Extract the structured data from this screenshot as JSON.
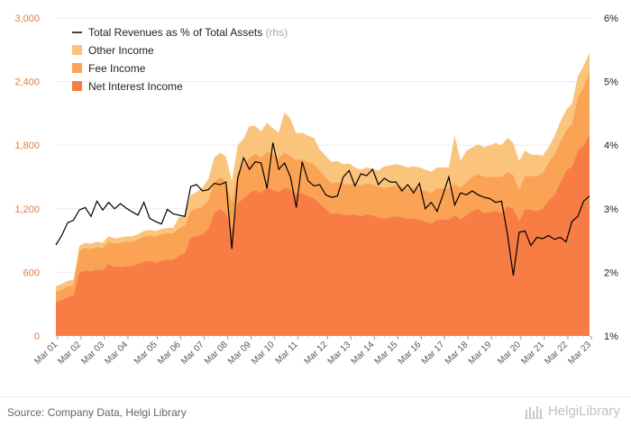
{
  "chart_data": {
    "type": "area",
    "title": "",
    "y_left": {
      "ticks": [
        "0",
        "600",
        "1,200",
        "1,800",
        "2,400",
        "3,000"
      ],
      "range": [
        0,
        3000
      ]
    },
    "y_right": {
      "ticks": [
        "1%",
        "2%",
        "3%",
        "4%",
        "5%",
        "6%"
      ],
      "range": [
        1,
        6
      ]
    },
    "x_tick_labels": [
      "Mar 01",
      "Mar 02",
      "Mar 03",
      "Mar 04",
      "Mar 05",
      "Mar 06",
      "Mar 07",
      "Mar 08",
      "Mar 09",
      "Mar 10",
      "Mar 11",
      "Mar 12",
      "Mar 13",
      "Mar 14",
      "Mar 15",
      "Mar 16",
      "Mar 17",
      "Mar 18",
      "Mar 19",
      "Mar 20",
      "Mar 21",
      "Mar 22",
      "Mar 23"
    ],
    "legend": [
      {
        "name": "Total Revenues as % of Total Assets",
        "suffix": "(rhs)",
        "type": "line",
        "color": "#000000"
      },
      {
        "name": "Other Income",
        "type": "area",
        "color": "#fbc47d"
      },
      {
        "name": "Fee Income",
        "type": "area",
        "color": "#fba354"
      },
      {
        "name": "Net Interest Income",
        "type": "area",
        "color": "#f77d45"
      }
    ],
    "series": [
      {
        "name": "Net Interest Income",
        "values": [
          320,
          340,
          370,
          380,
          600,
          620,
          610,
          630,
          620,
          680,
          650,
          650,
          660,
          660,
          680,
          700,
          710,
          690,
          710,
          720,
          720,
          760,
          780,
          930,
          940,
          960,
          1010,
          1160,
          1200,
          1160,
          1000,
          1250,
          1300,
          1350,
          1380,
          1350,
          1400,
          1380,
          1360,
          1400,
          1380,
          1340,
          1350,
          1320,
          1300,
          1250,
          1200,
          1150,
          1160,
          1150,
          1140,
          1150,
          1130,
          1150,
          1140,
          1120,
          1110,
          1120,
          1130,
          1120,
          1100,
          1110,
          1100,
          1080,
          1060,
          1100,
          1100,
          1100,
          1140,
          1100,
          1140,
          1180,
          1200,
          1160,
          1170,
          1180,
          1160,
          1220,
          1200,
          1080,
          1200,
          1190,
          1180,
          1200,
          1280,
          1330,
          1450,
          1560,
          1600,
          1750,
          1800,
          1900
        ]
      },
      {
        "name": "Fee Income",
        "values": [
          100,
          100,
          100,
          100,
          200,
          210,
          210,
          210,
          210,
          210,
          220,
          230,
          230,
          230,
          230,
          240,
          240,
          250,
          250,
          250,
          250,
          260,
          260,
          250,
          260,
          260,
          270,
          290,
          300,
          300,
          260,
          300,
          320,
          330,
          340,
          330,
          340,
          330,
          320,
          330,
          320,
          320,
          320,
          320,
          320,
          310,
          300,
          290,
          290,
          290,
          290,
          290,
          290,
          290,
          290,
          290,
          290,
          290,
          290,
          290,
          290,
          290,
          290,
          290,
          290,
          290,
          290,
          290,
          300,
          300,
          310,
          320,
          330,
          340,
          330,
          320,
          340,
          330,
          320,
          300,
          310,
          320,
          330,
          340,
          360,
          380,
          380,
          380,
          400,
          500,
          550,
          600
        ]
      },
      {
        "name": "Other Income",
        "values": [
          50,
          50,
          50,
          50,
          50,
          50,
          50,
          50,
          50,
          50,
          50,
          50,
          50,
          50,
          50,
          50,
          50,
          50,
          50,
          50,
          50,
          100,
          100,
          150,
          160,
          180,
          200,
          230,
          230,
          230,
          200,
          250,
          240,
          300,
          260,
          250,
          270,
          250,
          240,
          380,
          350,
          250,
          250,
          250,
          250,
          200,
          200,
          200,
          200,
          180,
          200,
          150,
          150,
          150,
          150,
          150,
          200,
          200,
          200,
          200,
          200,
          200,
          200,
          200,
          200,
          200,
          200,
          200,
          450,
          250,
          300,
          280,
          280,
          280,
          300,
          320,
          300,
          320,
          300,
          270,
          240,
          200,
          200,
          160,
          140,
          170,
          190,
          190,
          190,
          200,
          200,
          170
        ]
      },
      {
        "name": "Total Revenues as % of Total Assets",
        "axis": "rhs",
        "values": [
          2.43,
          2.58,
          2.78,
          2.82,
          2.98,
          3.02,
          2.88,
          3.12,
          2.98,
          3.1,
          3.0,
          3.08,
          3.01,
          2.95,
          2.9,
          3.1,
          2.85,
          2.8,
          2.76,
          2.99,
          2.92,
          2.9,
          2.88,
          3.35,
          3.38,
          3.28,
          3.3,
          3.4,
          3.38,
          3.42,
          2.37,
          3.48,
          3.8,
          3.62,
          3.74,
          3.72,
          3.32,
          4.04,
          3.62,
          3.72,
          3.5,
          3.02,
          3.74,
          3.44,
          3.36,
          3.38,
          3.22,
          3.18,
          3.2,
          3.5,
          3.6,
          3.36,
          3.55,
          3.52,
          3.62,
          3.38,
          3.48,
          3.42,
          3.42,
          3.28,
          3.38,
          3.25,
          3.4,
          3.0,
          3.1,
          2.96,
          3.22,
          3.5,
          3.06,
          3.25,
          3.22,
          3.28,
          3.22,
          3.18,
          3.16,
          3.1,
          3.12,
          2.6,
          1.95,
          2.63,
          2.65,
          2.42,
          2.55,
          2.53,
          2.58,
          2.52,
          2.55,
          2.48,
          2.8,
          2.88,
          3.12,
          3.2
        ]
      }
    ]
  },
  "footer": {
    "source": "Source: Company Data, Helgi Library",
    "logo_text": "HelgiLibrary"
  }
}
